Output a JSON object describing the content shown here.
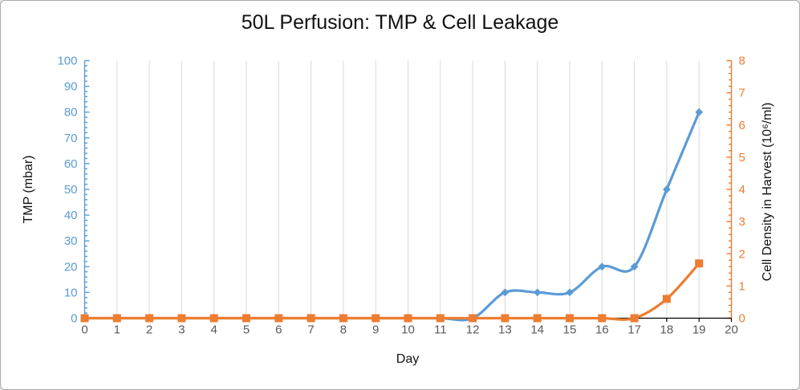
{
  "chart": {
    "title": "50L Perfusion: TMP & Cell Leakage",
    "x_axis": {
      "title": "Day",
      "min": 0,
      "max": 20,
      "tick_step": 1,
      "label_color": "#595959",
      "line_color": "#000000"
    },
    "left_axis": {
      "title": "TMP (mbar)",
      "min": 0,
      "max": 100,
      "tick_step": 10,
      "minor_step": 2,
      "color": "#5B9BD5"
    },
    "right_axis": {
      "title": "Cell Density in Harvest (10⁶/ml)",
      "min": 0,
      "max": 8,
      "tick_step": 1,
      "minor_step": 0.2,
      "color": "#ED7D31"
    },
    "gridline_color": "#D9D9D9",
    "background": "#FFFFFF",
    "border_color": "#ABABAB"
  },
  "chart_data": {
    "type": "line",
    "title": "50L Perfusion: TMP & Cell Leakage",
    "xlabel": "Day",
    "xlim": [
      0,
      20
    ],
    "left_ylabel": "TMP (mbar)",
    "right_ylabel": "Cell Density in Harvest (10⁶/ml)",
    "left_ylim": [
      0,
      100
    ],
    "right_ylim": [
      0,
      8
    ],
    "grid": "vertical-only",
    "legend": "none",
    "x": [
      0,
      1,
      2,
      3,
      4,
      5,
      6,
      7,
      8,
      9,
      10,
      11,
      12,
      13,
      14,
      15,
      16,
      17,
      18,
      19
    ],
    "series": [
      {
        "name": "TMP",
        "axis": "left",
        "color": "#5B9BD5",
        "marker": "diamond",
        "smooth": true,
        "values": [
          0,
          0,
          0,
          0,
          0,
          0,
          0,
          0,
          0,
          0,
          0,
          0,
          0,
          10,
          10,
          10,
          20,
          20,
          50,
          80
        ]
      },
      {
        "name": "Cell Density in Harvest",
        "axis": "right",
        "color": "#ED7D31",
        "marker": "square",
        "smooth": true,
        "values": [
          0,
          0,
          0,
          0,
          0,
          0,
          0,
          0,
          0,
          0,
          0,
          0,
          0,
          0,
          0,
          0,
          0,
          0,
          0.6,
          1.7
        ]
      }
    ]
  }
}
